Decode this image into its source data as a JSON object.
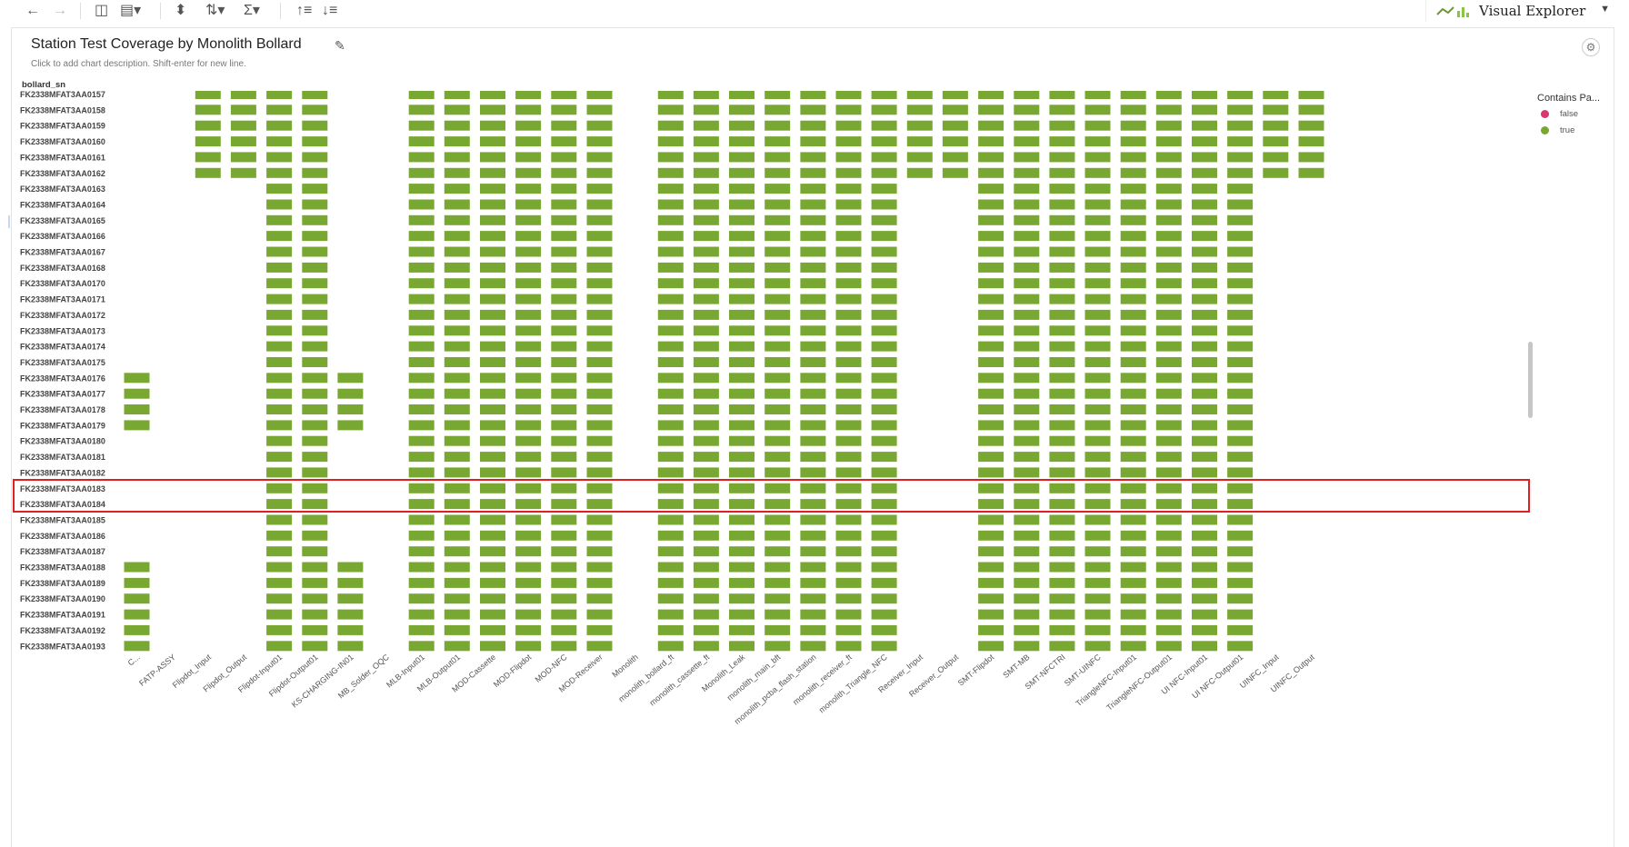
{
  "toolbar": {
    "icons": [
      "back-arrow-icon",
      "forward-arrow-icon",
      "add-chart-icon",
      "chart-type-icon",
      "swap-axes-icon",
      "group-icon",
      "sigma-icon",
      "sort-ascending-icon",
      "sort-descending-icon"
    ],
    "app_name": "Visual Explorer"
  },
  "chart_title": "Station Test Coverage by Monolith Bollard",
  "description_hint": "Click to add chart description. Shift-enter for new line.",
  "legend": {
    "title": "Contains Pa...",
    "items": [
      {
        "label": "false",
        "color": "#d63a6a"
      },
      {
        "label": "true",
        "color": "#78a832"
      }
    ]
  },
  "chart_data": {
    "type": "heatmap",
    "ylabel": "bollard_sn",
    "rows": [
      "FK2338MFAT3AA0157",
      "FK2338MFAT3AA0158",
      "FK2338MFAT3AA0159",
      "FK2338MFAT3AA0160",
      "FK2338MFAT3AA0161",
      "FK2338MFAT3AA0162",
      "FK2338MFAT3AA0163",
      "FK2338MFAT3AA0164",
      "FK2338MFAT3AA0165",
      "FK2338MFAT3AA0166",
      "FK2338MFAT3AA0167",
      "FK2338MFAT3AA0168",
      "FK2338MFAT3AA0170",
      "FK2338MFAT3AA0171",
      "FK2338MFAT3AA0172",
      "FK2338MFAT3AA0173",
      "FK2338MFAT3AA0174",
      "FK2338MFAT3AA0175",
      "FK2338MFAT3AA0176",
      "FK2338MFAT3AA0177",
      "FK2338MFAT3AA0178",
      "FK2338MFAT3AA0179",
      "FK2338MFAT3AA0180",
      "FK2338MFAT3AA0181",
      "FK2338MFAT3AA0182",
      "FK2338MFAT3AA0183",
      "FK2338MFAT3AA0184",
      "FK2338MFAT3AA0185",
      "FK2338MFAT3AA0186",
      "FK2338MFAT3AA0187",
      "FK2338MFAT3AA0188",
      "FK2338MFAT3AA0189",
      "FK2338MFAT3AA0190",
      "FK2338MFAT3AA0191",
      "FK2338MFAT3AA0192",
      "FK2338MFAT3AA0193"
    ],
    "columns": [
      "C...",
      "FATP-ASSY",
      "Flipdot_Input",
      "Flipdot_Output",
      "Flipdot-Input01",
      "Flipdot-Output01",
      "KS-CHARGING-IN01",
      "MB_Solder_OQC",
      "MLB-Input01",
      "MLB-Output01",
      "MOD-Cassette",
      "MOD-Flipdot",
      "MOD-NFC",
      "MOD-Receiver",
      "Monolith",
      "monolith_bollard_ft",
      "monolith_cassette_ft",
      "Monolith_Leak",
      "monolith_main_bft",
      "monolith_pcba_flash_station",
      "monolith_receiver_ft",
      "monolith_Triangle_NFC",
      "Receiver_Input",
      "Receiver_Output",
      "SMT-Flipdot",
      "SMT-MB",
      "SMT-NFCTRI",
      "SMT-UINFC",
      "TriangleNFC-Input01",
      "TriangleNFC-Output01",
      "UI NFC-Input01",
      "UI NFC-Output01",
      "UINFC_Input",
      "UINFC_Output"
    ],
    "row_coverage_groups": {
      "A": [
        2,
        3,
        4,
        5,
        8,
        9,
        10,
        11,
        12,
        13,
        15,
        16,
        17,
        18,
        19,
        20,
        21,
        22,
        23,
        24,
        25,
        26,
        27,
        28,
        29,
        30,
        31,
        32,
        33
      ],
      "B": [
        4,
        5,
        8,
        9,
        10,
        11,
        12,
        13,
        15,
        16,
        17,
        18,
        19,
        20,
        21,
        24,
        25,
        26,
        27,
        28,
        29,
        30,
        31
      ],
      "C": [
        0,
        4,
        5,
        6,
        8,
        9,
        10,
        11,
        12,
        13,
        15,
        16,
        17,
        18,
        19,
        20,
        21,
        24,
        25,
        26,
        27,
        28,
        29,
        30,
        31
      ]
    },
    "row_groups": [
      "A",
      "A",
      "A",
      "A",
      "A",
      "A",
      "B",
      "B",
      "B",
      "B",
      "B",
      "B",
      "B",
      "B",
      "B",
      "B",
      "B",
      "B",
      "C",
      "C",
      "C",
      "C",
      "B",
      "B",
      "B",
      "B",
      "B",
      "B",
      "B",
      "B",
      "C",
      "C",
      "C",
      "C",
      "C",
      "C"
    ],
    "cell_value": "true",
    "highlighted_rows": [
      "FK2338MFAT3AA0183",
      "FK2338MFAT3AA0184"
    ]
  }
}
